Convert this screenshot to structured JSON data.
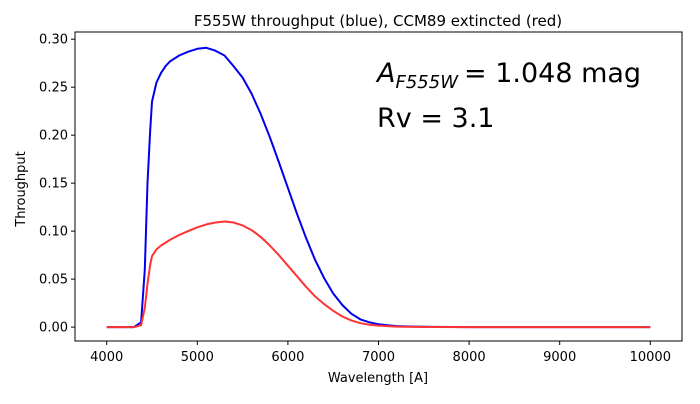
{
  "chart_data": {
    "type": "line",
    "title": "F555W throughput (blue), CCM89 extincted (red)",
    "xlabel": "Wavelength [A]",
    "ylabel": "Throughput",
    "xlim": [
      3650,
      10350
    ],
    "ylim": [
      -0.0145,
      0.3075
    ],
    "xticks": [
      4000,
      5000,
      6000,
      7000,
      8000,
      9000,
      10000
    ],
    "xtick_labels": [
      "4000",
      "5000",
      "6000",
      "7000",
      "8000",
      "9000",
      "10000"
    ],
    "yticks": [
      0.0,
      0.05,
      0.1,
      0.15,
      0.2,
      0.25,
      0.3
    ],
    "ytick_labels": [
      "0.00",
      "0.05",
      "0.10",
      "0.15",
      "0.20",
      "0.25",
      "0.30"
    ],
    "grid": false,
    "legend": "none",
    "series": [
      {
        "color": "#0000ee",
        "x": [
          4000,
          4300,
          4380,
          4420,
          4450,
          4480,
          4500,
          4550,
          4600,
          4650,
          4700,
          4800,
          4900,
          5000,
          5100,
          5200,
          5300,
          5400,
          5500,
          5600,
          5700,
          5800,
          5900,
          6000,
          6100,
          6200,
          6300,
          6400,
          6500,
          6600,
          6700,
          6800,
          6900,
          7000,
          7100,
          7200,
          7400,
          7600,
          8000,
          9000,
          10000
        ],
        "y": [
          0.0,
          0.0,
          0.005,
          0.06,
          0.15,
          0.205,
          0.235,
          0.255,
          0.265,
          0.272,
          0.277,
          0.283,
          0.287,
          0.29,
          0.291,
          0.288,
          0.283,
          0.272,
          0.26,
          0.243,
          0.222,
          0.198,
          0.172,
          0.145,
          0.118,
          0.093,
          0.07,
          0.051,
          0.035,
          0.023,
          0.014,
          0.008,
          0.005,
          0.003,
          0.002,
          0.001,
          0.0005,
          0.0002,
          0.0,
          0.0,
          0.0
        ]
      },
      {
        "color": "#ff3333",
        "x": [
          4000,
          4300,
          4380,
          4420,
          4450,
          4480,
          4500,
          4550,
          4600,
          4650,
          4700,
          4800,
          4900,
          5000,
          5100,
          5200,
          5300,
          5400,
          5500,
          5600,
          5700,
          5800,
          5900,
          6000,
          6100,
          6200,
          6300,
          6400,
          6500,
          6600,
          6700,
          6800,
          6900,
          7000,
          7100,
          7200,
          7400,
          7600,
          8000,
          9000,
          10000
        ],
        "y": [
          0.0,
          0.0,
          0.002,
          0.02,
          0.045,
          0.065,
          0.074,
          0.081,
          0.085,
          0.088,
          0.091,
          0.096,
          0.1,
          0.104,
          0.107,
          0.109,
          0.11,
          0.109,
          0.106,
          0.101,
          0.094,
          0.085,
          0.075,
          0.064,
          0.053,
          0.042,
          0.032,
          0.024,
          0.017,
          0.011,
          0.007,
          0.004,
          0.0025,
          0.0015,
          0.001,
          0.0005,
          0.0002,
          0.0001,
          0.0,
          0.0,
          0.0
        ]
      }
    ],
    "annotations": [
      {
        "text": "A",
        "subscript": "F555W",
        "suffix": "= 1.048 mag"
      },
      {
        "text": "Rv = 3.1"
      }
    ]
  }
}
